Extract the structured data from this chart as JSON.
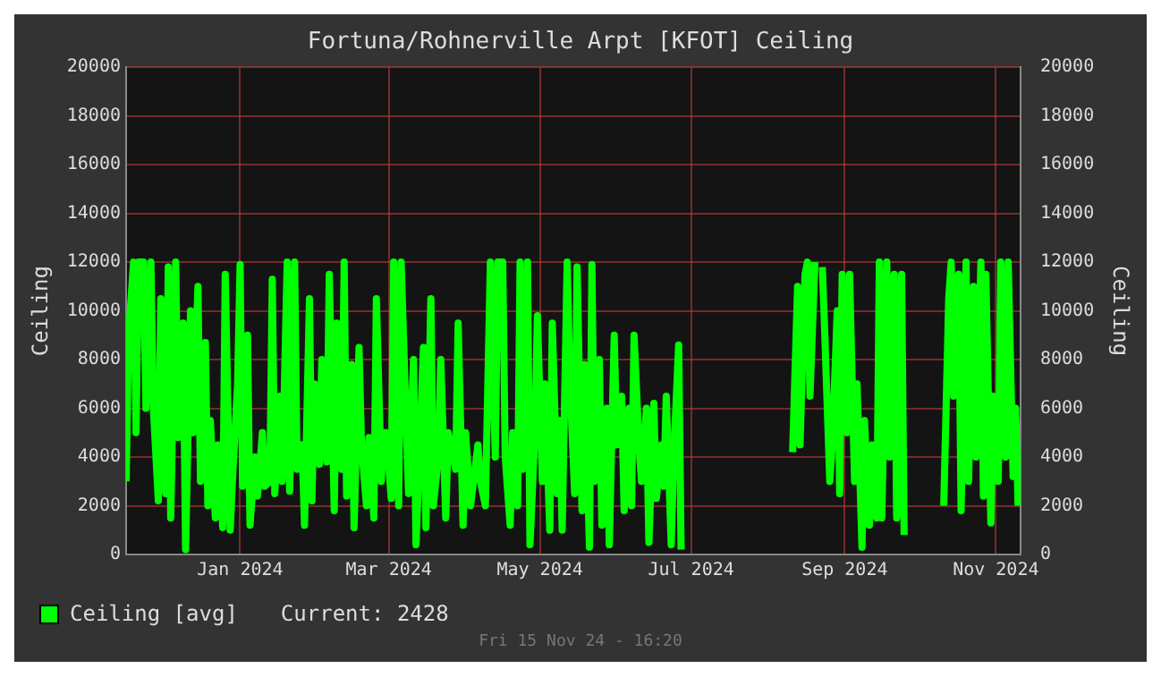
{
  "chart_data": {
    "type": "line",
    "title": "Fortuna/Rohnerville Arpt [KFOT] Ceiling",
    "ylabel": "Ceiling",
    "y2label": "Ceiling",
    "xlim": [
      "2023-11-16",
      "2024-11-11"
    ],
    "xticks": [
      {
        "value": "2024-01-01",
        "label": "Jan 2024"
      },
      {
        "value": "2024-03-01",
        "label": "Mar 2024"
      },
      {
        "value": "2024-05-01",
        "label": "May 2024"
      },
      {
        "value": "2024-07-01",
        "label": "Jul 2024"
      },
      {
        "value": "2024-09-01",
        "label": "Sep 2024"
      },
      {
        "value": "2024-11-01",
        "label": "Nov 2024"
      }
    ],
    "ylim": [
      0,
      20000
    ],
    "yticks": [
      0,
      2000,
      4000,
      6000,
      8000,
      10000,
      12000,
      14000,
      16000,
      18000,
      20000
    ],
    "y2lim": [
      0,
      20000
    ],
    "y2ticks": [
      0,
      2000,
      4000,
      6000,
      8000,
      10000,
      12000,
      14000,
      16000,
      18000,
      20000
    ],
    "grid": true,
    "legend": "bottom left",
    "marker": "none",
    "line_style": "solid",
    "annotations": [
      "Current: 2428",
      "Fri 15 Nov 24 - 16:20"
    ],
    "x": [
      "2023-11-16",
      "2023-11-17",
      "2023-11-19",
      "2023-11-20",
      "2023-11-21",
      "2023-11-23",
      "2023-11-24",
      "2023-11-26",
      "2023-11-27",
      "2023-11-29",
      "2023-11-30",
      "2023-12-02",
      "2023-12-03",
      "2023-12-04",
      "2023-12-06",
      "2023-12-07",
      "2023-12-09",
      "2023-12-10",
      "2023-12-12",
      "2023-12-13",
      "2023-12-15",
      "2023-12-16",
      "2023-12-18",
      "2023-12-19",
      "2023-12-20",
      "2023-12-22",
      "2023-12-23",
      "2023-12-25",
      "2023-12-26",
      "2023-12-28",
      "2023-12-29",
      "2023-12-31",
      "2024-01-01",
      "2024-01-02",
      "2024-01-04",
      "2024-01-05",
      "2024-01-07",
      "2024-01-08",
      "2024-01-10",
      "2024-01-11",
      "2024-01-13",
      "2024-01-14",
      "2024-01-15",
      "2024-01-17",
      "2024-01-18",
      "2024-01-20",
      "2024-01-21",
      "2024-01-23",
      "2024-01-24",
      "2024-01-26",
      "2024-01-27",
      "2024-01-29",
      "2024-01-30",
      "2024-01-31",
      "2024-02-02",
      "2024-02-03",
      "2024-02-05",
      "2024-02-06",
      "2024-02-08",
      "2024-02-09",
      "2024-02-11",
      "2024-02-12",
      "2024-02-13",
      "2024-02-15",
      "2024-02-16",
      "2024-02-18",
      "2024-02-19",
      "2024-02-21",
      "2024-02-22",
      "2024-02-24",
      "2024-02-25",
      "2024-02-27",
      "2024-02-28",
      "2024-02-29",
      "2024-03-02",
      "2024-03-03",
      "2024-03-05",
      "2024-03-06",
      "2024-03-08",
      "2024-03-09",
      "2024-03-11",
      "2024-03-12",
      "2024-03-13",
      "2024-03-15",
      "2024-03-16",
      "2024-03-18",
      "2024-03-19",
      "2024-03-21",
      "2024-03-22",
      "2024-03-24",
      "2024-03-25",
      "2024-03-28",
      "2024-03-29",
      "2024-03-31",
      "2024-04-01",
      "2024-04-03",
      "2024-04-06",
      "2024-04-07",
      "2024-04-09",
      "2024-04-11",
      "2024-04-13",
      "2024-04-14",
      "2024-04-16",
      "2024-04-17",
      "2024-04-19",
      "2024-04-20",
      "2024-04-22",
      "2024-04-23",
      "2024-04-24",
      "2024-04-26",
      "2024-04-27",
      "2024-04-29",
      "2024-04-30",
      "2024-05-02",
      "2024-05-03",
      "2024-05-05",
      "2024-05-06",
      "2024-05-08",
      "2024-05-09",
      "2024-05-10",
      "2024-05-12",
      "2024-05-13",
      "2024-05-15",
      "2024-05-16",
      "2024-05-18",
      "2024-05-19",
      "2024-05-21",
      "2024-05-22",
      "2024-05-23",
      "2024-05-25",
      "2024-05-26",
      "2024-05-28",
      "2024-05-29",
      "2024-05-31",
      "2024-06-01",
      "2024-06-03",
      "2024-06-04",
      "2024-06-06",
      "2024-06-07",
      "2024-06-08",
      "2024-06-10",
      "2024-06-11",
      "2024-06-13",
      "2024-06-14",
      "2024-06-16",
      "2024-06-17",
      "2024-06-19",
      "2024-06-20",
      "2024-06-21",
      "2024-06-23",
      "2024-06-24",
      "2024-06-26",
      "2024-06-27",
      "2024-07-15",
      "2024-08-11",
      "2024-08-13",
      "2024-08-14",
      "2024-08-16",
      "2024-08-17",
      "2024-08-18",
      "2024-08-20",
      "2024-08-21",
      "2024-08-23",
      "2024-08-24",
      "2024-08-26",
      "2024-08-27",
      "2024-08-29",
      "2024-08-30",
      "2024-08-31",
      "2024-09-02",
      "2024-09-03",
      "2024-09-05",
      "2024-09-06",
      "2024-09-08",
      "2024-09-09",
      "2024-09-11",
      "2024-09-12",
      "2024-09-14",
      "2024-09-15",
      "2024-09-16",
      "2024-09-18",
      "2024-09-19",
      "2024-09-21",
      "2024-09-22",
      "2024-09-24",
      "2024-09-25",
      "2024-10-05",
      "2024-10-11",
      "2024-10-13",
      "2024-10-14",
      "2024-10-15",
      "2024-10-17",
      "2024-10-18",
      "2024-10-20",
      "2024-10-21",
      "2024-10-23",
      "2024-10-24",
      "2024-10-26",
      "2024-10-27",
      "2024-10-28",
      "2024-10-30",
      "2024-10-31",
      "2024-11-02",
      "2024-11-03",
      "2024-11-05",
      "2024-11-06",
      "2024-11-08",
      "2024-11-09",
      "2024-11-10"
    ],
    "series": [
      {
        "name": "Ceiling [avg]",
        "color": "#00ff00",
        "values": [
          3000,
          9000,
          12000,
          5000,
          12000,
          12000,
          6000,
          12000,
          6000,
          2200,
          10500,
          2500,
          11800,
          1500,
          12000,
          4800,
          9500,
          200,
          10000,
          5000,
          11000,
          3000,
          8700,
          2000,
          5500,
          1500,
          4500,
          1100,
          11500,
          1000,
          3200,
          7000,
          11900,
          2800,
          9000,
          1200,
          4000,
          2400,
          5000,
          2800,
          3000,
          11300,
          2500,
          6500,
          3000,
          12000,
          2600,
          12000,
          3500,
          4500,
          1200,
          10500,
          2200,
          7000,
          3700,
          8000,
          3800,
          11500,
          1800,
          9500,
          3500,
          12000,
          2400,
          7800,
          1100,
          8500,
          4500,
          2000,
          4800,
          1500,
          10500,
          3000,
          5000,
          5000,
          2300,
          12000,
          2000,
          12000,
          5500,
          2500,
          8000,
          400,
          3000,
          8500,
          1100,
          10500,
          2000,
          4000,
          8000,
          1500,
          5000,
          3500,
          9500,
          1200,
          5000,
          2000,
          4500,
          3000,
          2000,
          12000,
          4000,
          12000,
          12000,
          4000,
          1200,
          5000,
          2000,
          12000,
          3500,
          12000,
          400,
          5000,
          9800,
          3000,
          7000,
          1000,
          9500,
          2500,
          5500,
          1000,
          12000,
          7500,
          2500,
          11800,
          1800,
          7800,
          300,
          11900,
          3000,
          8000,
          1200,
          6000,
          400,
          9000,
          4500,
          6500,
          1800,
          6000,
          2000,
          9000,
          4500,
          3000,
          6000,
          500,
          6200,
          2300,
          4500,
          2800,
          6500,
          400,
          4000,
          8600,
          200,
          null,
          4200,
          11000,
          4500,
          11500,
          12000,
          6500,
          12000,
          null,
          11800,
          9000,
          3000,
          4500,
          10000,
          2500,
          11500,
          5000,
          11500,
          3000,
          7000,
          300,
          5500,
          1200,
          4500,
          1500,
          12000,
          1500,
          12000,
          4000,
          11500,
          1500,
          11500,
          800,
          null,
          2000,
          10500,
          12000,
          6500,
          11500,
          1800,
          12000,
          3000,
          11000,
          4000,
          12000,
          2400,
          11500,
          1300,
          6500,
          3000,
          12000,
          4000,
          12000,
          3200,
          6000,
          2000
        ]
      }
    ]
  }
}
